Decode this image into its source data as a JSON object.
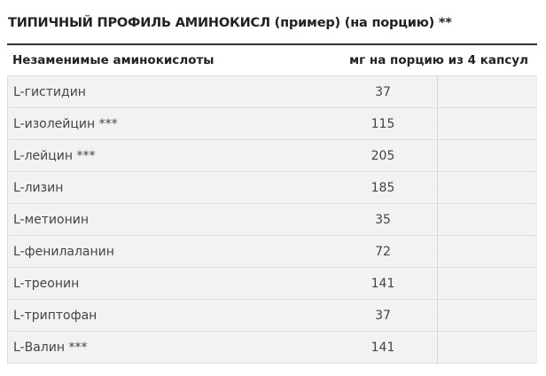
{
  "title": "ТИПИЧНЫЙ ПРОФИЛЬ АМИНОКИСЛ (пример) (на порцию) **",
  "table": {
    "headers": [
      "Незаменимые аминокислоты",
      "мг на порцию из 4 капсул"
    ],
    "rows": [
      {
        "name": "L-гистидин",
        "mg": "37"
      },
      {
        "name": "L-изолейцин ***",
        "mg": "115"
      },
      {
        "name": "L-лейцин ***",
        "mg": "205"
      },
      {
        "name": "L-лизин",
        "mg": "185"
      },
      {
        "name": "L-метионин",
        "mg": "35"
      },
      {
        "name": "L-фенилаланин",
        "mg": "72"
      },
      {
        "name": "L-треонин",
        "mg": "141"
      },
      {
        "name": "L-триптофан",
        "mg": "37"
      },
      {
        "name": "L-Валин ***",
        "mg": "141"
      }
    ]
  }
}
